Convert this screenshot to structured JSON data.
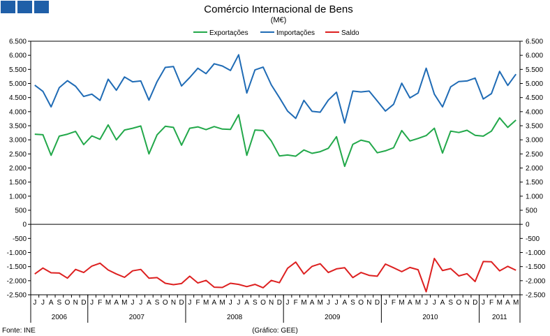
{
  "chart_data": {
    "type": "line",
    "title": "Comércio Internacional de Bens",
    "subtitle": "(M€)",
    "source": "Fonte: INE",
    "credit": "(Gráfico: GEE)",
    "legend_position": "top",
    "grid": false,
    "ylim": [
      -2500,
      6500
    ],
    "yticks": [
      6500,
      6000,
      5500,
      5000,
      4500,
      4000,
      3500,
      3000,
      2500,
      2000,
      1500,
      1000,
      500,
      0,
      -500,
      -1000,
      -1500,
      -2000,
      -2500
    ],
    "ytick_labels": [
      "6.500",
      "6.000",
      "5.500",
      "5.000",
      "4.500",
      "4.000",
      "3.500",
      "3.000",
      "2.500",
      "2.000",
      "1.500",
      "1.000",
      "500",
      "0",
      "-500",
      "-1.000",
      "-1.500",
      "-2.000",
      "-2.500"
    ],
    "x_month_labels": [
      "J",
      "J",
      "A",
      "S",
      "O",
      "N",
      "D",
      "J",
      "F",
      "M",
      "A",
      "M",
      "J",
      "J",
      "A",
      "S",
      "O",
      "N",
      "D",
      "J",
      "F",
      "M",
      "A",
      "M",
      "J",
      "J",
      "A",
      "S",
      "O",
      "N",
      "D",
      "J",
      "F",
      "M",
      "A",
      "M",
      "J",
      "J",
      "A",
      "S",
      "O",
      "N",
      "D",
      "J",
      "F",
      "M",
      "A",
      "M",
      "J",
      "J",
      "A",
      "S",
      "O",
      "N",
      "D",
      "J",
      "F",
      "M",
      "A",
      "M"
    ],
    "year_groups": [
      {
        "label": "2006",
        "start": 0,
        "count": 7
      },
      {
        "label": "2007",
        "start": 7,
        "count": 12
      },
      {
        "label": "2008",
        "start": 19,
        "count": 12
      },
      {
        "label": "2009",
        "start": 31,
        "count": 12
      },
      {
        "label": "2010",
        "start": 43,
        "count": 12
      },
      {
        "label": "2011",
        "start": 55,
        "count": 5
      }
    ],
    "series": [
      {
        "name": "Exportações",
        "color": "#22a84a",
        "values": [
          3200,
          3180,
          2450,
          3130,
          3200,
          3300,
          2830,
          3140,
          3020,
          3530,
          3000,
          3350,
          3410,
          3490,
          2500,
          3180,
          3480,
          3440,
          2810,
          3410,
          3460,
          3360,
          3470,
          3380,
          3370,
          3890,
          2450,
          3350,
          3330,
          2960,
          2430,
          2460,
          2420,
          2640,
          2520,
          2580,
          2700,
          3110,
          2060,
          2840,
          2990,
          2920,
          2540,
          2610,
          2720,
          3330,
          2960,
          3050,
          3150,
          3410,
          2530,
          3310,
          3260,
          3340,
          3160,
          3130,
          3310,
          3780,
          3440,
          3700
        ]
      },
      {
        "name": "Importações",
        "color": "#1f6bb5",
        "values": [
          4940,
          4720,
          4170,
          4850,
          5100,
          4900,
          4540,
          4620,
          4400,
          5150,
          4760,
          5230,
          5060,
          5090,
          4410,
          5070,
          5570,
          5600,
          4910,
          5210,
          5540,
          5350,
          5700,
          5620,
          5460,
          6020,
          4660,
          5480,
          5580,
          4950,
          4500,
          4020,
          3760,
          4400,
          4010,
          3980,
          4410,
          4690,
          3600,
          4730,
          4700,
          4730,
          4380,
          4020,
          4260,
          5010,
          4490,
          4660,
          5540,
          4620,
          4170,
          4880,
          5070,
          5090,
          5190,
          4450,
          4640,
          5430,
          4930,
          5330
        ]
      },
      {
        "name": "Saldo",
        "color": "#dd2020",
        "values": [
          -1760,
          -1550,
          -1720,
          -1730,
          -1910,
          -1600,
          -1710,
          -1480,
          -1380,
          -1620,
          -1760,
          -1880,
          -1650,
          -1600,
          -1910,
          -1890,
          -2090,
          -2140,
          -2100,
          -1840,
          -2080,
          -1990,
          -2230,
          -2240,
          -2090,
          -2130,
          -2210,
          -2130,
          -2250,
          -1990,
          -2070,
          -1560,
          -1340,
          -1760,
          -1490,
          -1400,
          -1710,
          -1580,
          -1540,
          -1890,
          -1710,
          -1810,
          -1840,
          -1410,
          -1540,
          -1680,
          -1530,
          -1610,
          -2390,
          -1210,
          -1640,
          -1570,
          -1830,
          -1750,
          -2030,
          -1320,
          -1330,
          -1650,
          -1490,
          -1630
        ]
      }
    ]
  }
}
